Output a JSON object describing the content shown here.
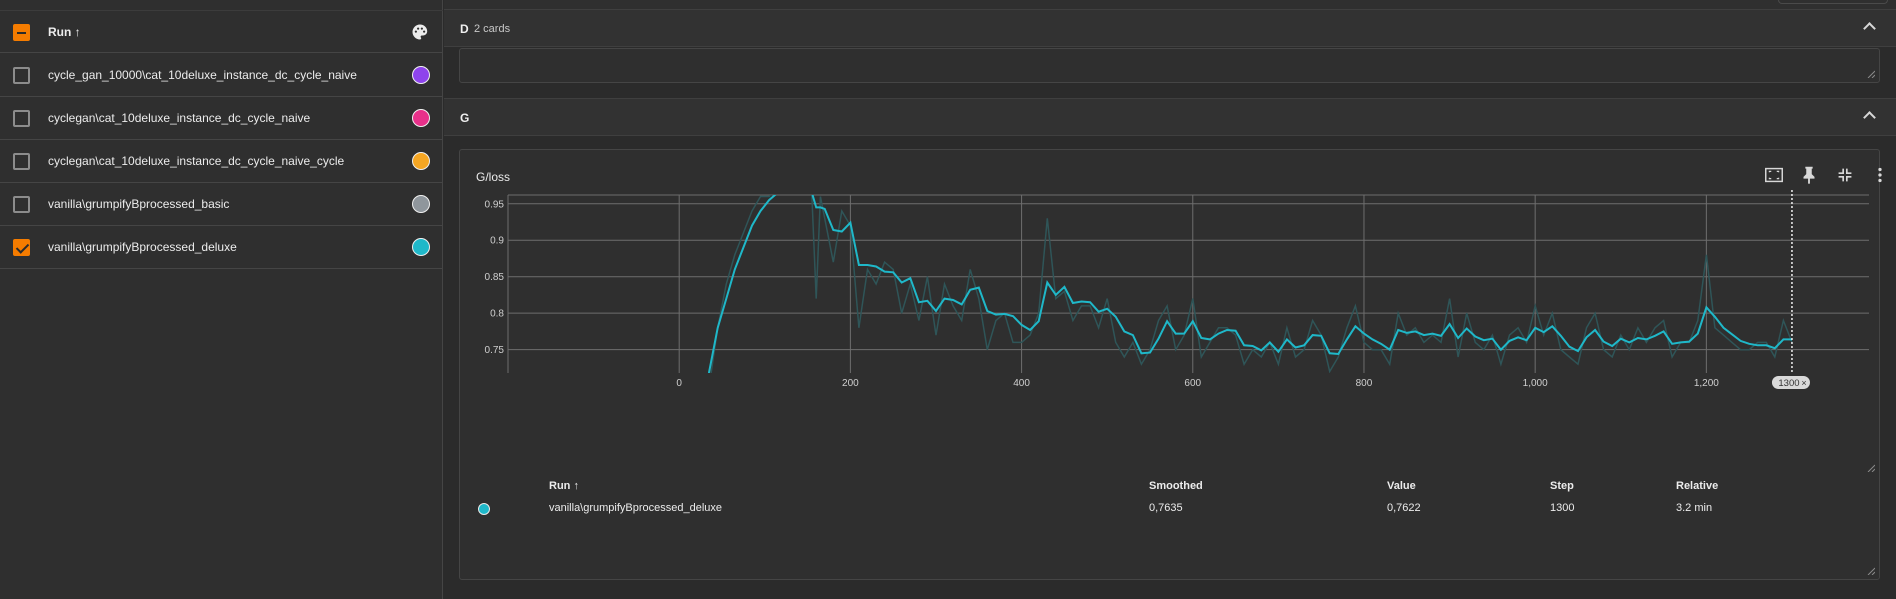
{
  "colors": {
    "accent": "#f57c00",
    "smoothed_line": "#1fb8c9",
    "raw_line": "#2f5558"
  },
  "sidebar": {
    "header_label": "Run ↑",
    "palette_icon": "palette-icon",
    "runs": [
      {
        "label": "cycle_gan_10000\\cat_10deluxe_instance_dc_cycle_naive",
        "color": "#8e44ec",
        "checked": false
      },
      {
        "label": "cyclegan\\cat_10deluxe_instance_dc_cycle_naive",
        "color": "#e8308a",
        "checked": false
      },
      {
        "label": "cyclegan\\cat_10deluxe_instance_dc_cycle_naive_cycle",
        "color": "#f5a623",
        "checked": false
      },
      {
        "label": "vanilla\\grumpifyBprocessed_basic",
        "color": "#8f969c",
        "checked": false
      },
      {
        "label": "vanilla\\grumpifyBprocessed_deluxe",
        "color": "#1fb8c9",
        "checked": true
      }
    ]
  },
  "groups": {
    "d": {
      "title": "D",
      "subtitle": "2 cards"
    },
    "g": {
      "title": "G"
    }
  },
  "card": {
    "title": "G/loss",
    "icons": [
      "fullscreen-icon",
      "pin-icon",
      "collapse-icon",
      "more-vert-icon"
    ],
    "step_chip": "1300"
  },
  "chart_data": {
    "type": "line",
    "title": "G/loss",
    "xlabel": "",
    "ylabel": "",
    "xlim": [
      -200,
      1390
    ],
    "ylim": [
      0.718,
      0.962
    ],
    "x_ticks": [
      0,
      200,
      400,
      600,
      800,
      1000,
      1200
    ],
    "x_tick_labels": [
      "0",
      "200",
      "400",
      "600",
      "800",
      "1,000",
      "1,200"
    ],
    "y_ticks": [
      0.75,
      0.8,
      0.85,
      0.9,
      0.95
    ],
    "y_tick_labels": [
      "0.75",
      "0.8",
      "0.85",
      "0.9",
      "0.95"
    ],
    "grid": true,
    "cursor_step": 1300,
    "series": [
      {
        "name": "vanilla\\grumpifyBprocessed_deluxe",
        "x": [
          25,
          35,
          45,
          55,
          65,
          75,
          85,
          95,
          105,
          115,
          125,
          135,
          145,
          155,
          160,
          165,
          170,
          180,
          190,
          200,
          210,
          220,
          230,
          240,
          250,
          260,
          270,
          280,
          290,
          300,
          310,
          320,
          330,
          340,
          350,
          360,
          370,
          380,
          390,
          400,
          410,
          420,
          430,
          440,
          450,
          460,
          470,
          480,
          490,
          500,
          510,
          520,
          530,
          540,
          550,
          560,
          570,
          580,
          590,
          600,
          610,
          620,
          630,
          640,
          650,
          660,
          670,
          680,
          690,
          700,
          710,
          720,
          730,
          740,
          750,
          760,
          770,
          780,
          790,
          800,
          810,
          820,
          830,
          840,
          850,
          860,
          870,
          880,
          890,
          900,
          910,
          920,
          930,
          940,
          950,
          960,
          970,
          980,
          990,
          1000,
          1010,
          1020,
          1030,
          1040,
          1050,
          1060,
          1070,
          1080,
          1090,
          1100,
          1110,
          1120,
          1130,
          1140,
          1150,
          1160,
          1170,
          1180,
          1190,
          1200,
          1210,
          1220,
          1230,
          1240,
          1250,
          1260,
          1270,
          1280,
          1290,
          1300
        ],
        "smoothed": [
          0.65,
          0.72,
          0.78,
          0.82,
          0.86,
          0.89,
          0.92,
          0.94,
          0.955,
          0.965,
          0.975,
          0.985,
          0.995,
          0.965,
          0.945,
          0.945,
          0.943,
          0.914,
          0.912,
          0.924,
          0.866,
          0.866,
          0.864,
          0.857,
          0.856,
          0.842,
          0.848,
          0.815,
          0.817,
          0.803,
          0.82,
          0.818,
          0.812,
          0.832,
          0.835,
          0.803,
          0.798,
          0.799,
          0.796,
          0.784,
          0.777,
          0.789,
          0.842,
          0.825,
          0.836,
          0.814,
          0.816,
          0.815,
          0.802,
          0.806,
          0.795,
          0.775,
          0.77,
          0.745,
          0.746,
          0.765,
          0.789,
          0.772,
          0.772,
          0.789,
          0.766,
          0.764,
          0.772,
          0.777,
          0.776,
          0.756,
          0.755,
          0.749,
          0.76,
          0.747,
          0.764,
          0.753,
          0.756,
          0.77,
          0.769,
          0.745,
          0.744,
          0.764,
          0.782,
          0.772,
          0.764,
          0.758,
          0.75,
          0.777,
          0.773,
          0.775,
          0.77,
          0.772,
          0.769,
          0.785,
          0.766,
          0.779,
          0.768,
          0.763,
          0.765,
          0.75,
          0.762,
          0.767,
          0.763,
          0.78,
          0.774,
          0.782,
          0.769,
          0.754,
          0.748,
          0.767,
          0.777,
          0.761,
          0.755,
          0.765,
          0.76,
          0.766,
          0.764,
          0.769,
          0.775,
          0.758,
          0.76,
          0.761,
          0.772,
          0.808,
          0.795,
          0.78,
          0.771,
          0.762,
          0.758,
          0.756,
          0.756,
          0.752,
          0.764,
          0.764
        ],
        "raw": [
          0.62,
          0.7,
          0.78,
          0.84,
          0.88,
          0.91,
          0.94,
          0.96,
          0.96,
          0.97,
          0.97,
          0.98,
          0.99,
          0.96,
          0.82,
          0.96,
          0.93,
          0.87,
          0.94,
          0.92,
          0.78,
          0.86,
          0.84,
          0.87,
          0.86,
          0.8,
          0.84,
          0.79,
          0.85,
          0.77,
          0.84,
          0.81,
          0.79,
          0.86,
          0.82,
          0.75,
          0.79,
          0.8,
          0.76,
          0.76,
          0.77,
          0.8,
          0.93,
          0.82,
          0.83,
          0.79,
          0.81,
          0.81,
          0.78,
          0.82,
          0.76,
          0.74,
          0.76,
          0.73,
          0.75,
          0.79,
          0.81,
          0.75,
          0.77,
          0.82,
          0.74,
          0.76,
          0.78,
          0.78,
          0.77,
          0.73,
          0.75,
          0.74,
          0.76,
          0.73,
          0.78,
          0.74,
          0.75,
          0.79,
          0.77,
          0.72,
          0.74,
          0.78,
          0.81,
          0.76,
          0.75,
          0.75,
          0.73,
          0.8,
          0.77,
          0.78,
          0.76,
          0.77,
          0.76,
          0.82,
          0.74,
          0.8,
          0.76,
          0.75,
          0.77,
          0.73,
          0.77,
          0.78,
          0.76,
          0.81,
          0.77,
          0.8,
          0.75,
          0.74,
          0.73,
          0.78,
          0.8,
          0.75,
          0.74,
          0.77,
          0.75,
          0.78,
          0.76,
          0.78,
          0.79,
          0.74,
          0.76,
          0.76,
          0.79,
          0.88,
          0.78,
          0.77,
          0.76,
          0.75,
          0.75,
          0.76,
          0.76,
          0.74,
          0.79,
          0.76
        ]
      }
    ]
  },
  "legend": {
    "headers": {
      "run": "Run ↑",
      "smoothed": "Smoothed",
      "value": "Value",
      "step": "Step",
      "relative": "Relative"
    },
    "row": {
      "run": "vanilla\\grumpifyBprocessed_deluxe",
      "smoothed": "0,7635",
      "value": "0,7622",
      "step": "1300",
      "relative": "3.2 min",
      "color": "#1fb8c9"
    }
  }
}
